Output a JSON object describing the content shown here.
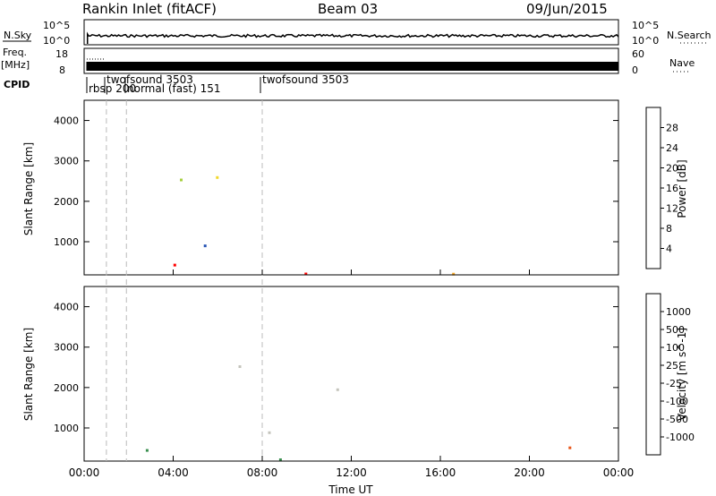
{
  "header": {
    "station": "Rankin Inlet (fitACF)",
    "beam": "Beam 03",
    "date": "09/Jun/2015"
  },
  "status_panels": {
    "nsky_label": "N.Sky",
    "nsky_ticks": [
      "10^5",
      "10^0"
    ],
    "nsearch_label": "N.Search",
    "nsearch_ticks": [
      "10^5",
      "10^0"
    ],
    "freq_label_1": "Freq.",
    "freq_label_2": "[MHz]",
    "freq_ticks": [
      "18",
      "8"
    ],
    "nave_label": "Nave",
    "nave_ticks": [
      "60",
      "0"
    ],
    "cpid_label": "CPID",
    "cpid_entries": [
      {
        "name": "rbsp 200"
      },
      {
        "name": "twofsound 3503"
      },
      {
        "name": "normal (fast) 151"
      },
      {
        "name": "twofsound 3503"
      }
    ]
  },
  "time_axis": {
    "xlabel": "Time UT",
    "ticks": [
      "00:00",
      "04:00",
      "08:00",
      "12:00",
      "16:00",
      "20:00",
      "00:00"
    ],
    "range_hours": [
      0,
      24
    ]
  },
  "chart_data": [
    {
      "type": "heatmap",
      "name": "power",
      "ylabel": "Slant Range [km]",
      "ylim": [
        180,
        4500
      ],
      "y_ticks": [
        "1000",
        "2000",
        "3000",
        "4000"
      ],
      "colorbar_label": "Power [dB]",
      "colorbar_ticks": [
        "28",
        "24",
        "20",
        "16",
        "12",
        "8",
        "4"
      ],
      "colors": [
        "#1530e0",
        "#2855b5",
        "#2e8a4f",
        "#52b046",
        "#a6cf3e",
        "#f2d82a",
        "#f5a623",
        "#ee6a18",
        "#e8280f",
        "#ff0000"
      ]
    },
    {
      "type": "heatmap",
      "name": "velocity",
      "ylabel": "Slant Range [km]",
      "ylim": [
        180,
        4500
      ],
      "y_ticks": [
        "1000",
        "2000",
        "3000",
        "4000"
      ],
      "colorbar_label": "Velocity [m s^-1]",
      "colorbar_ticks": [
        "1000",
        "500",
        "100",
        "25",
        "-25",
        "-100",
        "-500",
        "-1000"
      ],
      "colors": [
        "#1f3a9c",
        "#2e6fb5",
        "#3a8f4f",
        "#63c23d",
        "#c4c4bc",
        "#f6b62a",
        "#f08a1c",
        "#e8561a",
        "#e41a14"
      ]
    }
  ]
}
